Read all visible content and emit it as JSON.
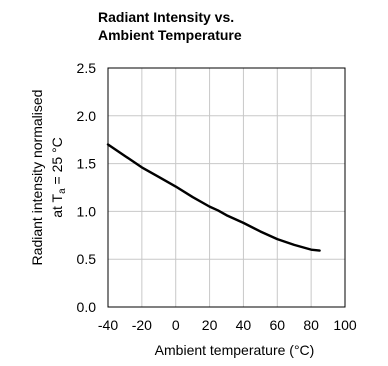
{
  "chart_data": {
    "type": "line",
    "title_lines": [
      "Radiant Intensity vs.",
      "Ambient Temperature"
    ],
    "xlabel": "Ambient temperature (°C)",
    "ylabel_line1": "Radiant intensity normalised",
    "ylabel_line2_prefix": "at T",
    "ylabel_line2_sub": "a",
    "ylabel_line2_suffix": " = 25 °C",
    "xlim": [
      -40,
      100
    ],
    "ylim": [
      0.0,
      2.5
    ],
    "xticks": [
      -40,
      -20,
      0,
      20,
      40,
      60,
      80,
      100
    ],
    "xtick_labels": [
      "-40",
      "-20",
      "0",
      "20",
      "40",
      "60",
      "80",
      "100"
    ],
    "yticks": [
      0.0,
      0.5,
      1.0,
      1.5,
      2.0,
      2.5
    ],
    "ytick_labels": [
      "0.0",
      "0.5",
      "1.0",
      "1.5",
      "2.0",
      "2.5"
    ],
    "grid": true,
    "line_color": "#000000",
    "grid_color": "#c8c8c8",
    "series": [
      {
        "x": [
          -40,
          -30,
          -20,
          -10,
          0,
          10,
          20,
          25,
          30,
          40,
          50,
          60,
          70,
          80,
          85
        ],
        "y": [
          1.7,
          1.58,
          1.46,
          1.36,
          1.26,
          1.15,
          1.05,
          1.01,
          0.96,
          0.88,
          0.79,
          0.71,
          0.65,
          0.6,
          0.59
        ]
      }
    ]
  }
}
